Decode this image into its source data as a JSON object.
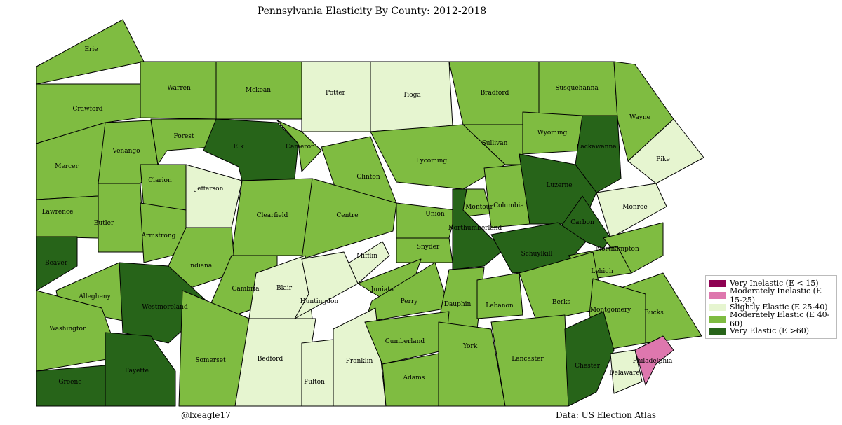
{
  "title": "Pennsylvania Elasticity By County: 2012-2018",
  "credit": "@lxeagle17",
  "source": "Data: US Election Atlas",
  "legend": [
    {
      "key": "very_inelastic",
      "label": "Very Inelastic (E < 15)",
      "color": "#8e0152"
    },
    {
      "key": "mod_inelastic",
      "label": "Moderately Inelastic (E 15-25)",
      "color": "#de77ae"
    },
    {
      "key": "slight_elastic",
      "label": "Slightly Elastic (E 25-40)",
      "color": "#e6f5d0"
    },
    {
      "key": "mod_elastic",
      "label": "Moderately Elastic (E 40-60)",
      "color": "#7fbc41"
    },
    {
      "key": "very_elastic",
      "label": "Very Elastic (E >60)",
      "color": "#276419"
    }
  ],
  "counties": [
    {
      "name": "Erie",
      "category": "mod_elastic"
    },
    {
      "name": "Crawford",
      "category": "mod_elastic"
    },
    {
      "name": "Warren",
      "category": "mod_elastic"
    },
    {
      "name": "Mckean",
      "category": "mod_elastic"
    },
    {
      "name": "Potter",
      "category": "slight_elastic"
    },
    {
      "name": "Tioga",
      "category": "slight_elastic"
    },
    {
      "name": "Bradford",
      "category": "mod_elastic"
    },
    {
      "name": "Susquehanna",
      "category": "mod_elastic"
    },
    {
      "name": "Wayne",
      "category": "mod_elastic"
    },
    {
      "name": "Mercer",
      "category": "mod_elastic"
    },
    {
      "name": "Venango",
      "category": "mod_elastic"
    },
    {
      "name": "Forest",
      "category": "mod_elastic"
    },
    {
      "name": "Elk",
      "category": "very_elastic"
    },
    {
      "name": "Cameron",
      "category": "mod_elastic"
    },
    {
      "name": "Clinton",
      "category": "mod_elastic"
    },
    {
      "name": "Lycoming",
      "category": "mod_elastic"
    },
    {
      "name": "Sullivan",
      "category": "mod_elastic"
    },
    {
      "name": "Wyoming",
      "category": "mod_elastic"
    },
    {
      "name": "Lackawanna",
      "category": "very_elastic"
    },
    {
      "name": "Pike",
      "category": "slight_elastic"
    },
    {
      "name": "Lawrence",
      "category": "mod_elastic"
    },
    {
      "name": "Butler",
      "category": "mod_elastic"
    },
    {
      "name": "Clarion",
      "category": "mod_elastic"
    },
    {
      "name": "Jefferson",
      "category": "slight_elastic"
    },
    {
      "name": "Clearfield",
      "category": "mod_elastic"
    },
    {
      "name": "Centre",
      "category": "mod_elastic"
    },
    {
      "name": "Union",
      "category": "mod_elastic"
    },
    {
      "name": "Montour",
      "category": "mod_elastic"
    },
    {
      "name": "Columbia",
      "category": "mod_elastic"
    },
    {
      "name": "Luzerne",
      "category": "very_elastic"
    },
    {
      "name": "Monroe",
      "category": "slight_elastic"
    },
    {
      "name": "Carbon",
      "category": "very_elastic"
    },
    {
      "name": "Northumberland",
      "category": "very_elastic"
    },
    {
      "name": "Beaver",
      "category": "very_elastic"
    },
    {
      "name": "Armstrong",
      "category": "mod_elastic"
    },
    {
      "name": "Indiana",
      "category": "mod_elastic"
    },
    {
      "name": "Snyder",
      "category": "mod_elastic"
    },
    {
      "name": "Mifflin",
      "category": "slight_elastic"
    },
    {
      "name": "Schuylkill",
      "category": "very_elastic"
    },
    {
      "name": "Northampton",
      "category": "mod_elastic"
    },
    {
      "name": "Lehigh",
      "category": "mod_elastic"
    },
    {
      "name": "Allegheny",
      "category": "mod_elastic"
    },
    {
      "name": "Westmoreland",
      "category": "very_elastic"
    },
    {
      "name": "Cambria",
      "category": "mod_elastic"
    },
    {
      "name": "Blair",
      "category": "slight_elastic"
    },
    {
      "name": "Huntingdon",
      "category": "slight_elastic"
    },
    {
      "name": "Juniata",
      "category": "mod_elastic"
    },
    {
      "name": "Perry",
      "category": "mod_elastic"
    },
    {
      "name": "Dauphin",
      "category": "mod_elastic"
    },
    {
      "name": "Lebanon",
      "category": "mod_elastic"
    },
    {
      "name": "Berks",
      "category": "mod_elastic"
    },
    {
      "name": "Bucks",
      "category": "mod_elastic"
    },
    {
      "name": "Montgomery",
      "category": "mod_elastic"
    },
    {
      "name": "Washington",
      "category": "mod_elastic"
    },
    {
      "name": "Somerset",
      "category": "mod_elastic"
    },
    {
      "name": "Bedford",
      "category": "slight_elastic"
    },
    {
      "name": "Fulton",
      "category": "slight_elastic"
    },
    {
      "name": "Franklin",
      "category": "slight_elastic"
    },
    {
      "name": "Cumberland",
      "category": "mod_elastic"
    },
    {
      "name": "Adams",
      "category": "mod_elastic"
    },
    {
      "name": "York",
      "category": "mod_elastic"
    },
    {
      "name": "Lancaster",
      "category": "mod_elastic"
    },
    {
      "name": "Chester",
      "category": "very_elastic"
    },
    {
      "name": "Delaware",
      "category": "slight_elastic"
    },
    {
      "name": "Philadelphia",
      "category": "mod_inelastic"
    },
    {
      "name": "Greene",
      "category": "very_elastic"
    },
    {
      "name": "Fayette",
      "category": "very_elastic"
    }
  ]
}
